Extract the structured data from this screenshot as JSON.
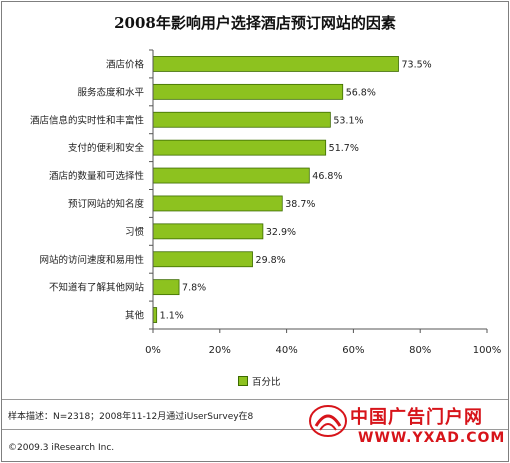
{
  "chart_data": {
    "type": "bar",
    "orientation": "horizontal",
    "title": "2008年影响用户选择酒店预订网站的因素",
    "categories": [
      "酒店价格",
      "服务态度和水平",
      "酒店信息的实时性和丰富性",
      "支付的便利和安全",
      "酒店的数量和可选择性",
      "预订网站的知名度",
      "习惯",
      "网站的访问速度和易用性",
      "不知道有了解其他网站",
      "其他"
    ],
    "values": [
      73.5,
      56.8,
      53.1,
      51.7,
      46.8,
      38.7,
      32.9,
      29.8,
      7.8,
      1.1
    ],
    "value_labels": [
      "73.5%",
      "56.8%",
      "53.1%",
      "51.7%",
      "46.8%",
      "38.7%",
      "32.9%",
      "29.8%",
      "7.8%",
      "1.1%"
    ],
    "series": [
      {
        "name": "百分比",
        "values": [
          73.5,
          56.8,
          53.1,
          51.7,
          46.8,
          38.7,
          32.9,
          29.8,
          7.8,
          1.1
        ]
      }
    ],
    "xlim": [
      0,
      100
    ],
    "x_ticks": [
      "0%",
      "20%",
      "40%",
      "60%",
      "80%",
      "100%"
    ],
    "grid": false,
    "legend_position": "bottom",
    "bar_color": "#8dc21f",
    "bar_border_color": "#3c6b00"
  },
  "footer": {
    "note": "样本描述：N=2318；2008年11-12月通过iUserSurvey在8",
    "copyright": "©2009.3 iResearch Inc."
  },
  "watermark": {
    "brand": "中国广告门户网",
    "url": "WWW.YXAD.COM"
  }
}
